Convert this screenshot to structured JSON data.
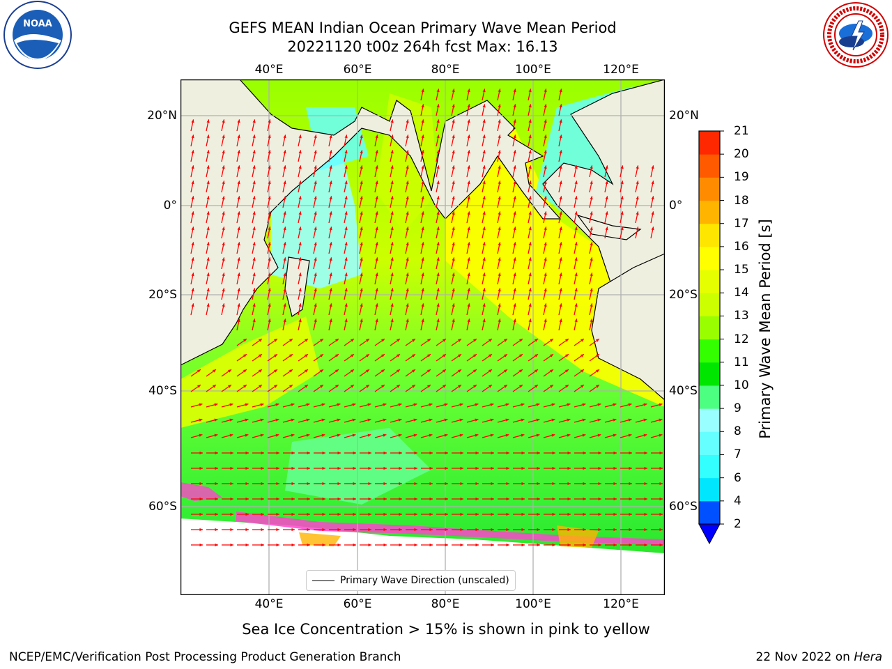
{
  "header": {
    "title_line1": "GEFS MEAN Indian Ocean Primary Wave Mean Period",
    "title_line2": "20221120 t00z 264h fcst   Max: 16.13"
  },
  "logos": {
    "left": "noaa-logo",
    "right": "national-weather-service-logo"
  },
  "map": {
    "lon_ticks": [
      "40°E",
      "60°E",
      "80°E",
      "100°E",
      "120°E"
    ],
    "lat_ticks": [
      "20°N",
      "0°",
      "20°S",
      "40°S",
      "60°S"
    ],
    "land_color": "#efefe0",
    "grid_color": "#b0b0b0",
    "arrow_color": "#ff0000",
    "legend_label": "Primary Wave Direction (unscaled)"
  },
  "colorbar": {
    "label": "Primary Wave Mean Period [s]",
    "ticks": [
      "2",
      "4",
      "6",
      "7",
      "8",
      "9",
      "10",
      "11",
      "12",
      "13",
      "14",
      "15",
      "16",
      "17",
      "18",
      "19",
      "20",
      "21"
    ],
    "colors": [
      "#0050ff",
      "#00e6ff",
      "#33ffff",
      "#66ffff",
      "#99ffff",
      "#4dff80",
      "#00e600",
      "#33ff00",
      "#99ff00",
      "#ccff00",
      "#e6ff00",
      "#ffff00",
      "#ffe600",
      "#ffb400",
      "#ff8c00",
      "#ff5a00",
      "#ff2800"
    ],
    "extend_color": "#0000ff"
  },
  "footer": {
    "subtitle": "Sea Ice Concentration > 15% is shown in pink to yellow",
    "left": "NCEP/EMC/Verification Post Processing Product Generation Branch",
    "right_prefix": "22 Nov 2022 on ",
    "right_host": "Hera"
  }
}
